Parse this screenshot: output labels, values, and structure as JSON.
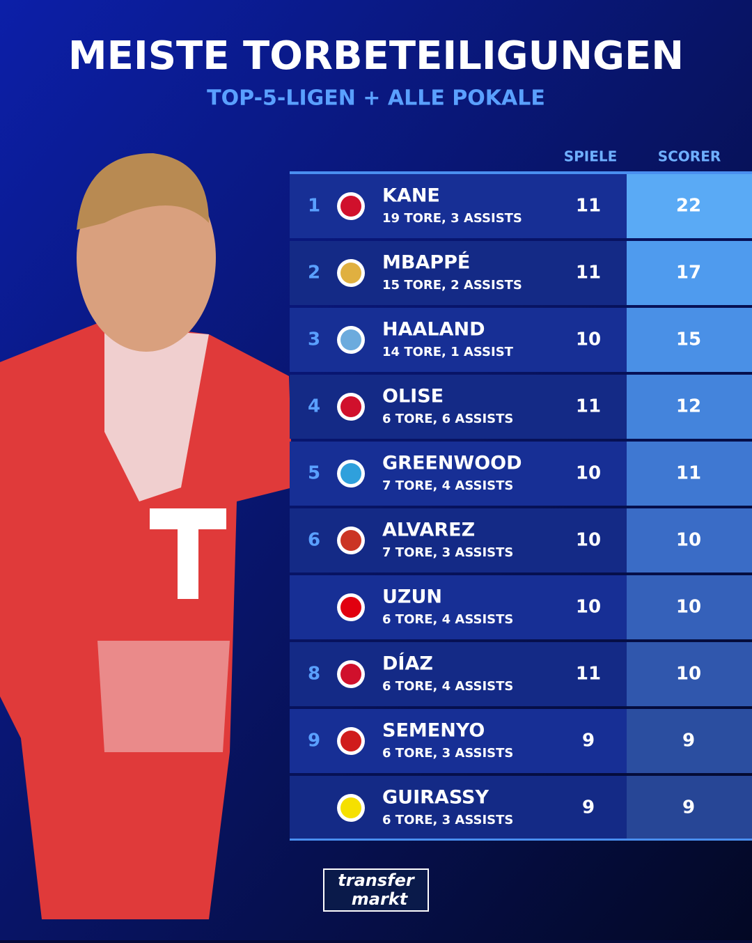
{
  "header": {
    "title": "MEISTE TORBETEILIGUNGEN",
    "subtitle": "TOP-5-LIGEN + ALLE POKALE"
  },
  "table": {
    "columns": [
      "SPIELE",
      "SCORER"
    ],
    "rows": [
      {
        "rank": "1",
        "name": "KANE",
        "detail": "19 TORE, 3 ASSISTS",
        "games": "11",
        "scorer": "22"
      },
      {
        "rank": "2",
        "name": "MBAPPÉ",
        "detail": "15 TORE, 2 ASSISTS",
        "games": "11",
        "scorer": "17"
      },
      {
        "rank": "3",
        "name": "HAALAND",
        "detail": "14 TORE, 1 ASSIST",
        "games": "10",
        "scorer": "15"
      },
      {
        "rank": "4",
        "name": "OLISE",
        "detail": "6 TORE, 6 ASSISTS",
        "games": "11",
        "scorer": "12"
      },
      {
        "rank": "5",
        "name": "GREENWOOD",
        "detail": "7 TORE, 4 ASSISTS",
        "games": "10",
        "scorer": "11"
      },
      {
        "rank": "6",
        "name": "ALVAREZ",
        "detail": "7 TORE, 3 ASSISTS",
        "games": "10",
        "scorer": "10"
      },
      {
        "rank": null,
        "name": "UZUN",
        "detail": "6 TORE, 4 ASSISTS",
        "games": "10",
        "scorer": "10"
      },
      {
        "rank": "8",
        "name": "DÍAZ",
        "detail": "6 TORE, 4 ASSISTS",
        "games": "11",
        "scorer": "10"
      },
      {
        "rank": "9",
        "name": "SEMENYO",
        "detail": "6 TORE, 3 ASSISTS",
        "games": "9",
        "scorer": "9"
      },
      {
        "rank": null,
        "name": "GUIRASSY",
        "detail": "6 TORE, 3 ASSISTS",
        "games": "9",
        "scorer": "9"
      }
    ]
  },
  "logo": {
    "line1": "transfer",
    "line2": "markt"
  }
}
